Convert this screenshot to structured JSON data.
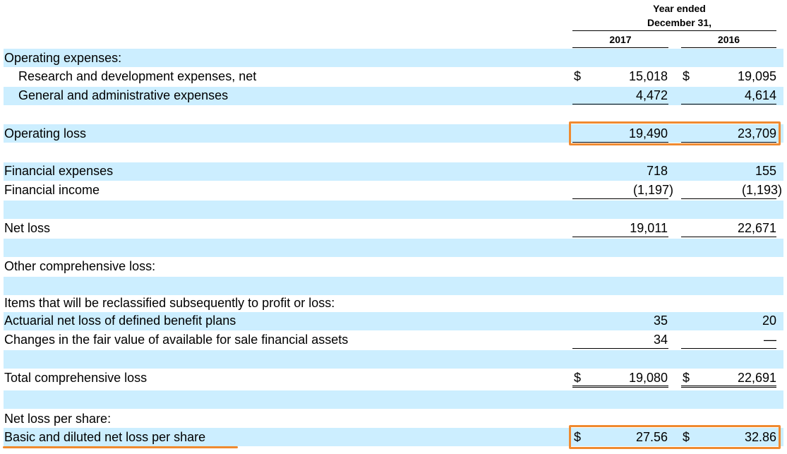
{
  "header": {
    "period_line1": "Year ended",
    "period_line2": "December 31,",
    "col_2017": "2017",
    "col_2016": "2016"
  },
  "rows": {
    "opex_heading": {
      "label": "Operating expenses:"
    },
    "rnd": {
      "label": "Research and development expenses, net",
      "cur_a": "$",
      "v2017": "15,018",
      "cur_b": "$",
      "v2016": "19,095"
    },
    "gna": {
      "label": "General and administrative expenses",
      "v2017": "4,472",
      "v2016": "4,614"
    },
    "operating_loss": {
      "label": "Operating loss",
      "v2017": "19,490",
      "v2016": "23,709"
    },
    "fin_exp": {
      "label": "Financial expenses",
      "v2017": "718",
      "v2016": "155"
    },
    "fin_inc": {
      "label": "Financial income",
      "v2017": "(1,197)",
      "v2016": "(1,193)"
    },
    "net_loss": {
      "label": "Net loss",
      "v2017": "19,011",
      "v2016": "22,671"
    },
    "ocl_heading": {
      "label": "Other comprehensive loss:"
    },
    "reclass_heading": {
      "label": "Items that will be reclassified subsequently to profit or loss:"
    },
    "actuarial": {
      "label": "Actuarial net loss of defined benefit plans",
      "v2017": "35",
      "v2016": "20"
    },
    "fair_value": {
      "label": "Changes in the fair value of available for sale financial assets",
      "v2017": "34",
      "v2016": "—"
    },
    "total_cl": {
      "label": "Total comprehensive loss",
      "cur_a": "$",
      "v2017": "19,080",
      "cur_b": "$",
      "v2016": "22,691"
    },
    "nlps_heading": {
      "label": "Net loss per share:"
    },
    "basic": {
      "label": "Basic and diluted net loss per share",
      "cur_a": "$",
      "v2017": "27.56",
      "cur_b": "$",
      "v2016": "32.86"
    }
  },
  "colors": {
    "band": "#cceeff",
    "highlight": "#f08a30"
  }
}
